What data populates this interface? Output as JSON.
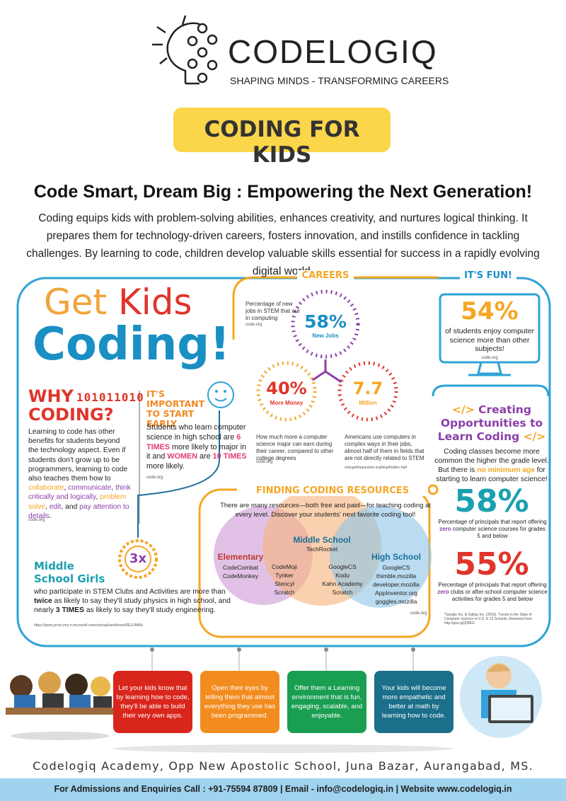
{
  "logo": {
    "name": "CODELOGIQ",
    "tagline": "SHAPING MINDS - TRANSFORMING CAREERS"
  },
  "badge": "CODING FOR KIDS",
  "headline": "Code Smart, Dream Big : Empowering the Next Generation!",
  "intro": "Coding equips kids with problem-solving abilities, enhances creativity, and nurtures logical thinking. It prepares them for technology-driven careers, fosters innovation, and instills confidence in tackling challenges. By learning to code, children develop valuable skills essential for success in a rapidly evolving digital world.",
  "infographic": {
    "title": {
      "line1": [
        {
          "text": "Get ",
          "color": "#f2a33a"
        },
        {
          "text": "Kids",
          "color": "#e0352b"
        }
      ],
      "line2": "Coding!"
    },
    "why": {
      "title1": "WHY",
      "binary": "101011010",
      "title2": "CODING?",
      "body": [
        {
          "text": "Learning to code has other benefits for students beyond the technology aspect. Even if students don't grow up to be programmers, learning to code also teaches them how to "
        },
        {
          "text": "collaborate",
          "color": "#f5a623"
        },
        {
          "text": ", "
        },
        {
          "text": "communicate",
          "color": "#8b3fa8"
        },
        {
          "text": ", "
        },
        {
          "text": "think critically and logically",
          "color": "#8b3fa8"
        },
        {
          "text": ", "
        },
        {
          "text": "problem solve",
          "color": "#f5a623"
        },
        {
          "text": ", "
        },
        {
          "text": "edit",
          "color": "#8b3fa8"
        },
        {
          "text": ", and "
        },
        {
          "text": "pay attention to details",
          "color": "#8b3fa8"
        },
        {
          "text": "."
        }
      ],
      "source": "code.org"
    },
    "start_early": {
      "title": "IT'S IMPORTANT TO START EARLY",
      "body": [
        {
          "text": "Students who learn computer science in high school are "
        },
        {
          "text": "6 TIMES",
          "color": "#e23b7a",
          "bold": true
        },
        {
          "text": " more likely to major in it and "
        },
        {
          "text": "WOMEN",
          "color": "#e23b7a",
          "bold": true
        },
        {
          "text": " are "
        },
        {
          "text": "10 TIMES",
          "color": "#e23b7a",
          "bold": true
        },
        {
          "text": " more likely."
        }
      ],
      "source": "code.org"
    },
    "girls": {
      "badge": "3x",
      "title": "Middle School Girls",
      "body": [
        {
          "text": "who participate in STEM Clubs and Activities are more than "
        },
        {
          "text": "twice",
          "bold": true
        },
        {
          "text": " as likely to say they'll study physics in high school, and nearly "
        },
        {
          "text": "3 TIMES",
          "bold": true
        },
        {
          "text": " as likely to say they'll study engineering."
        }
      ],
      "source": "https://query.prod.cms.rt.microsoft.com/cms/api/am/binary/RE1UMWs"
    },
    "careers": {
      "heading": "CAREERS",
      "jobs": {
        "note": "Percentage of new jobs in STEM that are in computing",
        "source": "code.org",
        "value": "58%",
        "label": "New Jobs"
      },
      "money": {
        "value": "40%",
        "label": "More Money",
        "note": "How much more a computer science major can earn during their career, compared to other college degrees",
        "source": "code.org"
      },
      "million": {
        "value": "7.7",
        "label": "Million",
        "note": "Americans use computers in complex ways in their jobs, almost half of them in fields that are not directly related to STEM",
        "source": "changethequestion.org/blog/hidden-half"
      }
    },
    "fun": {
      "heading": "IT'S FUN!",
      "value": "54%",
      "note": "of students enjoy computer science more than other subjects!",
      "source": "code.org"
    },
    "opportunities": {
      "title": [
        {
          "text": "</> ",
          "color": "#f5a623"
        },
        {
          "text": "Creating Opportunities to Learn Coding"
        },
        {
          "text": " </>",
          "color": "#f5a623"
        }
      ],
      "body": [
        {
          "text": "Coding classes become more common the higher the grade level. But there is "
        },
        {
          "text": "no minimum age",
          "color": "#f5a623",
          "bold": true
        },
        {
          "text": " for starting to learn computer science!"
        }
      ],
      "stats": [
        {
          "value": "58%",
          "body": [
            {
              "text": "Percentage of principals that report offering "
            },
            {
              "text": "zero",
              "color": "#8b3fa8",
              "bold": true
            },
            {
              "text": " computer science courses for grades 5 and below"
            }
          ]
        },
        {
          "value": "55%",
          "body": [
            {
              "text": "Percentage of principals that report offering "
            },
            {
              "text": "zero",
              "color": "#8b3fa8",
              "bold": true
            },
            {
              "text": " clubs or after-school computer science activities for grades 5 and below"
            }
          ]
        }
      ],
      "source": "*Google Inc. & Gallup Inc. (2016). Trends in the State of Computer Science in U.S. K-12 Schools. Retrieved from http://goo.gl/j29fEG"
    },
    "resources": {
      "heading": "FINDING CODING RESOURCES",
      "intro": "There are many resources—both free and paid—for teaching coding at every level. Discover your students' next favorite coding tool!",
      "elementary": {
        "title": "Elementary",
        "items": [
          "CodeCombat",
          "CodeMonkey"
        ]
      },
      "elem_middle": [
        "CodeMoji",
        "Tynker",
        "Stencyl",
        "Scratch"
      ],
      "middle": {
        "title": "Middle School",
        "items": [
          "TechRocket"
        ]
      },
      "middle_high": [
        "GoogleCS",
        "Kodu",
        "Kahn Academy",
        "Scratch"
      ],
      "high": {
        "title": "High School",
        "items": [
          "GoogleCS",
          "thimble.mozilla",
          "developer.mozilla",
          "AppInventor.org",
          "goggles.mozilla"
        ]
      },
      "source": "code.org"
    }
  },
  "tags": [
    "Let your kids know that by learning how to code, they'll be able to build their very own apps.",
    "Open their eyes by telling them that almost everything they use has been programmed.",
    "Offer them a Learning environment that is fun, engaging, scalable, and enjoyable.",
    "Your kids will become more empathetic and better at math by learning how to code."
  ],
  "footer": {
    "address": "Codelogiq Academy, Opp New Apostolic School, Juna Bazar, Aurangabad, MS.",
    "contact": "For Admissions and Enquiries Call : +91-75594 87809 | Email - info@codelogiq.in | Website www.codelogiq.in"
  }
}
